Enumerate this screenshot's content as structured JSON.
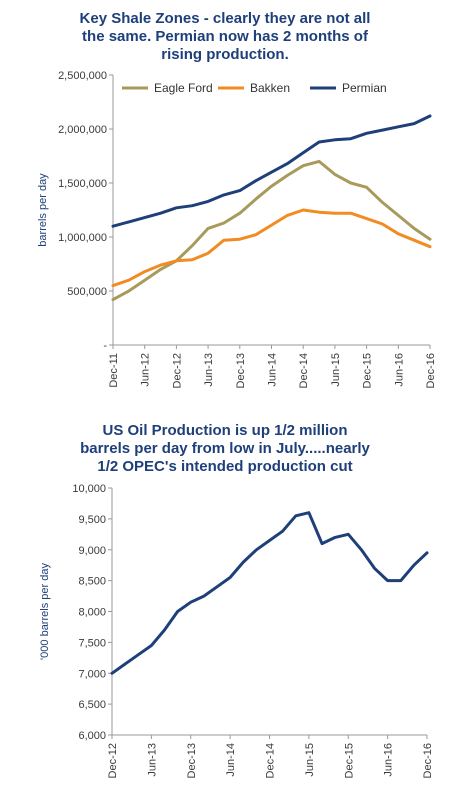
{
  "chart_data": [
    {
      "type": "line",
      "title": "Key Shale Zones - clearly they are not all\nthe same.  Permian now has 2 months of\nrising production.",
      "ylabel": "barrels per day",
      "ylim": [
        0,
        2500000
      ],
      "yticks": [
        "-",
        "500,000",
        "1,000,000",
        "1,500,000",
        "2,000,000",
        "2,500,000"
      ],
      "xticks": [
        "Dec-11",
        "Jun-12",
        "Dec-12",
        "Jun-13",
        "Dec-13",
        "Jun-14",
        "Dec-14",
        "Jun-15",
        "Dec-15",
        "Jun-16",
        "Dec-16"
      ],
      "x": [
        "Dec-11",
        "Mar-12",
        "Jun-12",
        "Sep-12",
        "Dec-12",
        "Mar-13",
        "Jun-13",
        "Sep-13",
        "Dec-13",
        "Mar-14",
        "Jun-14",
        "Sep-14",
        "Dec-14",
        "Mar-15",
        "Jun-15",
        "Sep-15",
        "Dec-15",
        "Mar-16",
        "Jun-16",
        "Sep-16",
        "Dec-16"
      ],
      "legend": "top",
      "series": [
        {
          "name": "Eagle Ford",
          "color": "#a89a5b",
          "values": [
            420000,
            500000,
            600000,
            700000,
            780000,
            920000,
            1080000,
            1130000,
            1220000,
            1350000,
            1470000,
            1570000,
            1660000,
            1700000,
            1580000,
            1500000,
            1460000,
            1320000,
            1200000,
            1080000,
            980000
          ]
        },
        {
          "name": "Bakken",
          "color": "#f28b21",
          "values": [
            550000,
            600000,
            680000,
            740000,
            780000,
            790000,
            850000,
            970000,
            980000,
            1020000,
            1110000,
            1200000,
            1250000,
            1230000,
            1220000,
            1220000,
            1170000,
            1120000,
            1030000,
            970000,
            910000
          ]
        },
        {
          "name": "Permian",
          "color": "#1f3f7a",
          "values": [
            1100000,
            1140000,
            1180000,
            1220000,
            1270000,
            1290000,
            1330000,
            1390000,
            1430000,
            1520000,
            1600000,
            1680000,
            1780000,
            1880000,
            1900000,
            1910000,
            1960000,
            1990000,
            2020000,
            2050000,
            2120000
          ]
        }
      ]
    },
    {
      "type": "line",
      "title": "US Oil Production is up 1/2 million\nbarrels per day from low in July.....nearly\n1/2 OPEC's intended production cut",
      "ylabel": "'000 barrels per day",
      "ylim": [
        6000,
        10000
      ],
      "yticks": [
        "6,000",
        "6,500",
        "7,000",
        "7,500",
        "8,000",
        "8,500",
        "9,000",
        "9,500",
        "10,000"
      ],
      "xticks": [
        "Dec-12",
        "Jun-13",
        "Dec-13",
        "Jun-14",
        "Dec-14",
        "Jun-15",
        "Dec-15",
        "Jun-16",
        "Dec-16"
      ],
      "x": [
        "Dec-12",
        "Feb-13",
        "Apr-13",
        "Jun-13",
        "Aug-13",
        "Oct-13",
        "Dec-13",
        "Feb-14",
        "Apr-14",
        "Jun-14",
        "Aug-14",
        "Oct-14",
        "Dec-14",
        "Feb-15",
        "Apr-15",
        "Jun-15",
        "Aug-15",
        "Oct-15",
        "Dec-15",
        "Feb-16",
        "Apr-16",
        "Jun-16",
        "Aug-16",
        "Oct-16",
        "Dec-16"
      ],
      "series": [
        {
          "name": "",
          "color": "#1f3f7a",
          "values": [
            7000,
            7150,
            7300,
            7450,
            7700,
            8000,
            8150,
            8250,
            8400,
            8550,
            8800,
            9000,
            9150,
            9300,
            9550,
            9600,
            9100,
            9200,
            9250,
            9000,
            8700,
            8500,
            8500,
            8750,
            8950
          ]
        }
      ]
    }
  ]
}
